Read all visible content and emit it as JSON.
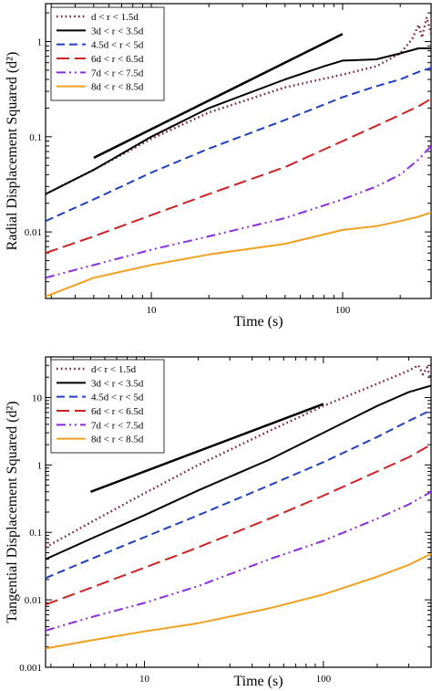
{
  "chart_data": [
    {
      "type": "line",
      "xlabel": "Time (s)",
      "ylabel": "Radial Displacement Squared (d²)",
      "xscale": "log",
      "yscale": "log",
      "xlim": [
        2.8,
        290
      ],
      "ylim": [
        0.002,
        2.5
      ],
      "x_ticks": [
        {
          "value": 10,
          "label": "10"
        },
        {
          "value": 100,
          "label": "100"
        }
      ],
      "y_ticks": [
        {
          "value": 0.01,
          "label": "0.01"
        },
        {
          "value": 0.1,
          "label": "0.1"
        },
        {
          "value": 1,
          "label": "1"
        }
      ],
      "legend_position": "top-left",
      "series": [
        {
          "name": "d < r < 1.5d",
          "color": "#7b1e3a",
          "dash": "dot",
          "points": [
            [
              2.8,
              0.025
            ],
            [
              5,
              0.045
            ],
            [
              10,
              0.095
            ],
            [
              20,
              0.18
            ],
            [
              50,
              0.33
            ],
            [
              100,
              0.45
            ],
            [
              150,
              0.55
            ],
            [
              200,
              0.75
            ],
            [
              230,
              1.05
            ],
            [
              250,
              1.5
            ],
            [
              260,
              1.1
            ],
            [
              275,
              1.8
            ],
            [
              290,
              1.2
            ]
          ]
        },
        {
          "name": "3d < r < 3.5d",
          "color": "#000000",
          "dash": "solid",
          "points": [
            [
              2.8,
              0.025
            ],
            [
              5,
              0.045
            ],
            [
              10,
              0.1
            ],
            [
              20,
              0.2
            ],
            [
              50,
              0.4
            ],
            [
              80,
              0.55
            ],
            [
              100,
              0.63
            ],
            [
              150,
              0.65
            ],
            [
              200,
              0.75
            ],
            [
              250,
              0.85
            ],
            [
              290,
              0.85
            ]
          ]
        },
        {
          "name": "4.5d < r < 5d",
          "color": "#1f3fbf",
          "dash": "dash",
          "points": [
            [
              2.8,
              0.013
            ],
            [
              5,
              0.022
            ],
            [
              10,
              0.042
            ],
            [
              20,
              0.075
            ],
            [
              50,
              0.15
            ],
            [
              100,
              0.26
            ],
            [
              150,
              0.34
            ],
            [
              200,
              0.4
            ],
            [
              250,
              0.48
            ],
            [
              290,
              0.53
            ]
          ]
        },
        {
          "name": "6d < r < 6.5d",
          "color": "#cc2222",
          "dash": "longdash",
          "points": [
            [
              2.8,
              0.006
            ],
            [
              5,
              0.009
            ],
            [
              10,
              0.015
            ],
            [
              20,
              0.025
            ],
            [
              50,
              0.048
            ],
            [
              100,
              0.09
            ],
            [
              150,
              0.13
            ],
            [
              200,
              0.17
            ],
            [
              250,
              0.21
            ],
            [
              290,
              0.25
            ]
          ]
        },
        {
          "name": "7d < r < 7.5d",
          "color": "#8a2be2",
          "dash": "dashdotdot",
          "points": [
            [
              2.8,
              0.0033
            ],
            [
              5,
              0.0045
            ],
            [
              10,
              0.0065
            ],
            [
              20,
              0.009
            ],
            [
              50,
              0.014
            ],
            [
              100,
              0.022
            ],
            [
              150,
              0.03
            ],
            [
              200,
              0.04
            ],
            [
              250,
              0.058
            ],
            [
              290,
              0.08
            ]
          ]
        },
        {
          "name": "8d < r < 8.5d",
          "color": "#f0a020",
          "dash": "solid",
          "points": [
            [
              2.8,
              0.0021
            ],
            [
              5,
              0.0033
            ],
            [
              10,
              0.0045
            ],
            [
              20,
              0.0058
            ],
            [
              50,
              0.0075
            ],
            [
              100,
              0.0105
            ],
            [
              150,
              0.0115
            ],
            [
              200,
              0.013
            ],
            [
              250,
              0.0145
            ],
            [
              290,
              0.016
            ]
          ]
        },
        {
          "name": "",
          "color": "#000000",
          "dash": "solid",
          "width": 2.5,
          "legend": false,
          "points": [
            [
              5,
              0.06
            ],
            [
              100,
              1.2
            ]
          ]
        }
      ]
    },
    {
      "type": "line",
      "xlabel": "Time (s)",
      "ylabel": "Tangential Displacement Squared (d²)",
      "xscale": "log",
      "yscale": "log",
      "xlim": [
        2.8,
        400
      ],
      "ylim": [
        0.001,
        40
      ],
      "x_ticks": [
        {
          "value": 10,
          "label": "10"
        },
        {
          "value": 100,
          "label": "100"
        }
      ],
      "y_ticks": [
        {
          "value": 0.001,
          "label": "0.001"
        },
        {
          "value": 0.01,
          "label": "0.01"
        },
        {
          "value": 0.1,
          "label": "0.1"
        },
        {
          "value": 1,
          "label": "1"
        },
        {
          "value": 10,
          "label": "10"
        }
      ],
      "legend_position": "top-left",
      "series": [
        {
          "name": "d< r < 1.5d",
          "color": "#7b1e3a",
          "dash": "dot",
          "points": [
            [
              2.8,
              0.06
            ],
            [
              5,
              0.14
            ],
            [
              10,
              0.38
            ],
            [
              20,
              1.0
            ],
            [
              50,
              3.2
            ],
            [
              100,
              7.5
            ],
            [
              200,
              16
            ],
            [
              300,
              25
            ],
            [
              340,
              30
            ],
            [
              360,
              22
            ],
            [
              380,
              28
            ],
            [
              400,
              18
            ]
          ]
        },
        {
          "name": "3d < r < 3.5d",
          "color": "#000000",
          "dash": "solid",
          "points": [
            [
              2.8,
              0.04
            ],
            [
              5,
              0.08
            ],
            [
              10,
              0.18
            ],
            [
              20,
              0.42
            ],
            [
              50,
              1.2
            ],
            [
              100,
              3.0
            ],
            [
              200,
              7.5
            ],
            [
              300,
              12
            ],
            [
              400,
              15
            ]
          ]
        },
        {
          "name": "4.5d < r < 5d",
          "color": "#1f3fbf",
          "dash": "dash",
          "points": [
            [
              2.8,
              0.021
            ],
            [
              5,
              0.04
            ],
            [
              10,
              0.085
            ],
            [
              20,
              0.18
            ],
            [
              50,
              0.5
            ],
            [
              100,
              1.1
            ],
            [
              200,
              2.6
            ],
            [
              300,
              4.5
            ],
            [
              400,
              6.5
            ]
          ]
        },
        {
          "name": "6d < r < 6.5d",
          "color": "#cc2222",
          "dash": "longdash",
          "points": [
            [
              2.8,
              0.0085
            ],
            [
              5,
              0.015
            ],
            [
              10,
              0.03
            ],
            [
              20,
              0.06
            ],
            [
              50,
              0.16
            ],
            [
              100,
              0.35
            ],
            [
              200,
              0.8
            ],
            [
              300,
              1.3
            ],
            [
              400,
              2.0
            ]
          ]
        },
        {
          "name": "7d < r < 7.5d",
          "color": "#8a2be2",
          "dash": "dashdotdot",
          "points": [
            [
              2.8,
              0.0035
            ],
            [
              5,
              0.0055
            ],
            [
              10,
              0.009
            ],
            [
              20,
              0.016
            ],
            [
              50,
              0.04
            ],
            [
              100,
              0.075
            ],
            [
              200,
              0.16
            ],
            [
              300,
              0.26
            ],
            [
              400,
              0.4
            ]
          ]
        },
        {
          "name": "8d < r < 8.5d",
          "color": "#f0a020",
          "dash": "solid",
          "points": [
            [
              2.8,
              0.0019
            ],
            [
              5,
              0.0025
            ],
            [
              10,
              0.0034
            ],
            [
              20,
              0.0045
            ],
            [
              50,
              0.0075
            ],
            [
              100,
              0.012
            ],
            [
              200,
              0.022
            ],
            [
              300,
              0.033
            ],
            [
              400,
              0.048
            ]
          ]
        },
        {
          "name": "",
          "color": "#000000",
          "dash": "solid",
          "width": 2.5,
          "legend": false,
          "points": [
            [
              5,
              0.4
            ],
            [
              100,
              8
            ]
          ]
        }
      ]
    }
  ]
}
